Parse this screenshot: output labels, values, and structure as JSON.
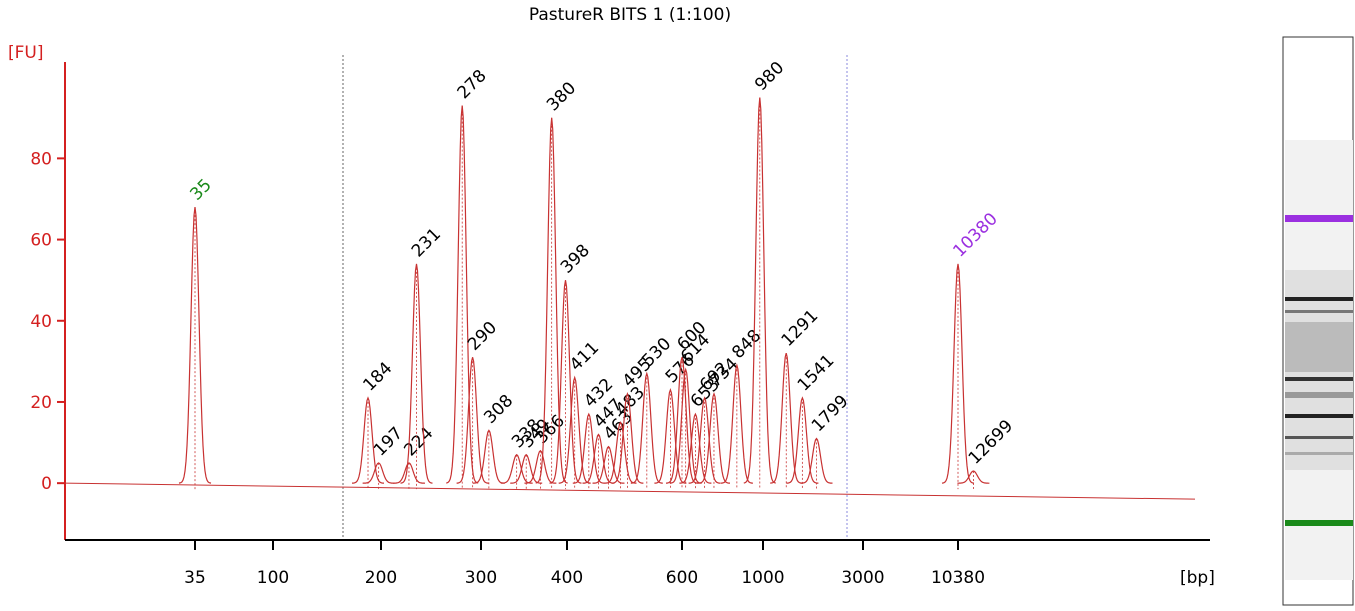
{
  "chart_data": {
    "type": "electropherogram",
    "title": "PastureR BITS 1 (1:100)",
    "y_label": "[FU]",
    "x_label": "[bp]",
    "trace_color": "#c83232",
    "label_color": "#000000",
    "ylim": [
      -14,
      103
    ],
    "yticks": [
      0,
      20,
      40,
      60,
      80
    ],
    "xticks": [
      35,
      100,
      200,
      300,
      400,
      600,
      1000,
      3000,
      10380
    ],
    "peaks": [
      {
        "bp": 35,
        "fu": 68,
        "color": "#1a8a1a"
      },
      {
        "bp": 184,
        "fu": 21
      },
      {
        "bp": 197,
        "fu": 5
      },
      {
        "bp": 224,
        "fu": 5
      },
      {
        "bp": 231,
        "fu": 54
      },
      {
        "bp": 278,
        "fu": 93
      },
      {
        "bp": 290,
        "fu": 31
      },
      {
        "bp": 308,
        "fu": 13
      },
      {
        "bp": 338,
        "fu": 7
      },
      {
        "bp": 349,
        "fu": 7
      },
      {
        "bp": 366,
        "fu": 8
      },
      {
        "bp": 380,
        "fu": 90
      },
      {
        "bp": 398,
        "fu": 50
      },
      {
        "bp": 411,
        "fu": 26
      },
      {
        "bp": 432,
        "fu": 17
      },
      {
        "bp": 447,
        "fu": 12
      },
      {
        "bp": 463,
        "fu": 9
      },
      {
        "bp": 483,
        "fu": 15
      },
      {
        "bp": 495,
        "fu": 22
      },
      {
        "bp": 530,
        "fu": 27
      },
      {
        "bp": 576,
        "fu": 23
      },
      {
        "bp": 600,
        "fu": 31
      },
      {
        "bp": 614,
        "fu": 28
      },
      {
        "bp": 653,
        "fu": 17
      },
      {
        "bp": 692,
        "fu": 21
      },
      {
        "bp": 734,
        "fu": 22
      },
      {
        "bp": 848,
        "fu": 29
      },
      {
        "bp": 980,
        "fu": 95
      },
      {
        "bp": 1291,
        "fu": 32
      },
      {
        "bp": 1541,
        "fu": 21
      },
      {
        "bp": 1799,
        "fu": 11
      },
      {
        "bp": 10380,
        "fu": 54,
        "color": "#9b30e0"
      },
      {
        "bp": 12699,
        "fu": 3
      }
    ]
  }
}
